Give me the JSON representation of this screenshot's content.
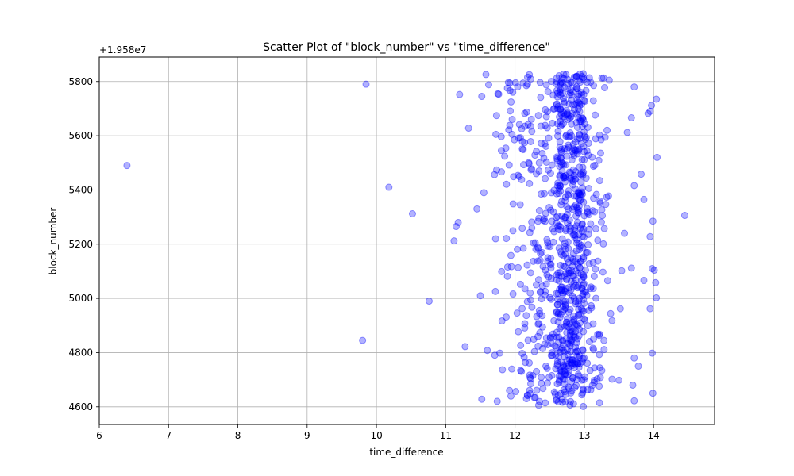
{
  "chart_data": {
    "type": "scatter",
    "title": "Scatter Plot of \"block_number\" vs \"time_difference\"",
    "xlabel": "time_difference",
    "ylabel": "block_number",
    "y_offset_label": "+1.958e7",
    "xlim": [
      6,
      14.88
    ],
    "ylim": [
      4535,
      5890
    ],
    "xticks": [
      6,
      7,
      8,
      9,
      10,
      11,
      12,
      13,
      14
    ],
    "yticks": [
      4600,
      4800,
      5000,
      5200,
      5400,
      5600,
      5800
    ],
    "grid": true,
    "point_color": "#0000ff",
    "point_alpha": 0.3,
    "outliers": [
      [
        6.4,
        5490
      ],
      [
        9.85,
        5790
      ],
      [
        10.18,
        5410
      ],
      [
        10.52,
        5312
      ],
      [
        10.76,
        4990
      ],
      [
        9.8,
        4845
      ],
      [
        11.2,
        5752
      ],
      [
        11.33,
        5628
      ],
      [
        11.45,
        5330
      ],
      [
        11.18,
        5280
      ],
      [
        11.15,
        5265
      ],
      [
        11.12,
        5212
      ],
      [
        11.28,
        4822
      ],
      [
        11.52,
        5745
      ],
      [
        11.58,
        5826
      ],
      [
        11.62,
        5788
      ],
      [
        11.55,
        5390
      ],
      [
        11.5,
        5010
      ],
      [
        11.52,
        4628
      ],
      [
        11.6,
        4808
      ],
      [
        14.45,
        5306
      ],
      [
        14.05,
        5520
      ],
      [
        14.04,
        5735
      ],
      [
        13.97,
        5712
      ],
      [
        13.95,
        5690
      ],
      [
        13.92,
        5682
      ],
      [
        13.62,
        5612
      ],
      [
        13.68,
        5666
      ],
      [
        13.72,
        5780
      ],
      [
        13.82,
        5458
      ],
      [
        13.72,
        5416
      ],
      [
        13.86,
        5365
      ],
      [
        13.99,
        5285
      ],
      [
        13.95,
        5228
      ],
      [
        13.98,
        5110
      ],
      [
        14.01,
        5104
      ],
      [
        14.03,
        5058
      ],
      [
        14.04,
        5002
      ],
      [
        13.95,
        4962
      ],
      [
        13.86,
        5066
      ],
      [
        13.68,
        5112
      ],
      [
        13.58,
        5240
      ],
      [
        13.52,
        4962
      ],
      [
        13.5,
        4698
      ],
      [
        13.4,
        4702
      ],
      [
        13.7,
        4680
      ],
      [
        13.72,
        4622
      ],
      [
        13.72,
        4780
      ],
      [
        13.78,
        4750
      ],
      [
        13.98,
        4798
      ],
      [
        13.99,
        4650
      ],
      [
        13.36,
        5805
      ],
      [
        13.54,
        5102
      ],
      [
        13.4,
        4918
      ],
      [
        13.38,
        4944
      ],
      [
        13.22,
        4868
      ]
    ],
    "cluster": {
      "x_center": 12.6,
      "x_spread": 0.45,
      "dense_x_range": [
        12.6,
        13.0
      ],
      "y_range": [
        4600,
        5830
      ],
      "approx_points": 900
    }
  }
}
